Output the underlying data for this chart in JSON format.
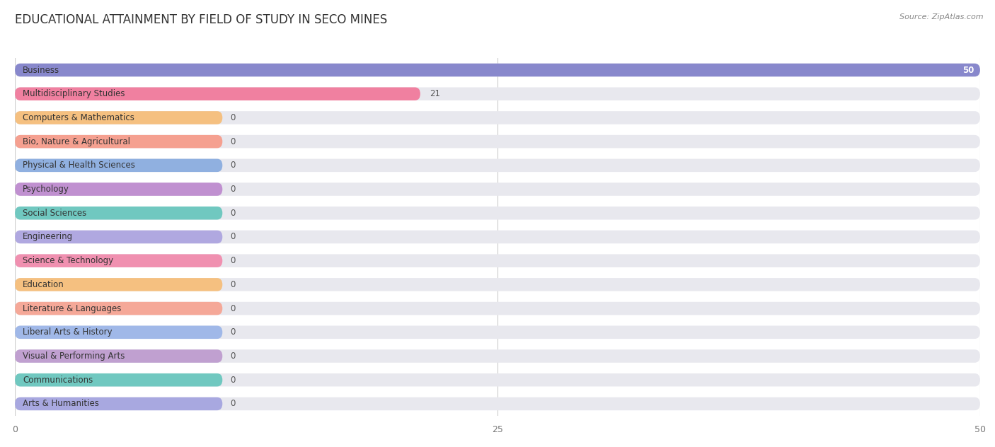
{
  "title": "EDUCATIONAL ATTAINMENT BY FIELD OF STUDY IN SECO MINES",
  "source": "Source: ZipAtlas.com",
  "categories": [
    "Business",
    "Multidisciplinary Studies",
    "Computers & Mathematics",
    "Bio, Nature & Agricultural",
    "Physical & Health Sciences",
    "Psychology",
    "Social Sciences",
    "Engineering",
    "Science & Technology",
    "Education",
    "Literature & Languages",
    "Liberal Arts & History",
    "Visual & Performing Arts",
    "Communications",
    "Arts & Humanities"
  ],
  "values": [
    50,
    21,
    0,
    0,
    0,
    0,
    0,
    0,
    0,
    0,
    0,
    0,
    0,
    0,
    0
  ],
  "bar_colors": [
    "#8888cc",
    "#f080a0",
    "#f5c080",
    "#f5a090",
    "#90b0e0",
    "#c090d0",
    "#70c8c0",
    "#b0a8e0",
    "#f090b0",
    "#f5c080",
    "#f5a898",
    "#a0b8e8",
    "#c0a0d0",
    "#70c8c0",
    "#a8a8e0"
  ],
  "xlim": [
    0,
    50
  ],
  "xticks": [
    0,
    25,
    50
  ],
  "background_color": "#ffffff",
  "row_bg_color": "#efefef",
  "bar_bg_color": "#e8e8ee",
  "title_fontsize": 12,
  "label_fontsize": 8.5,
  "value_fontsize": 8.5
}
